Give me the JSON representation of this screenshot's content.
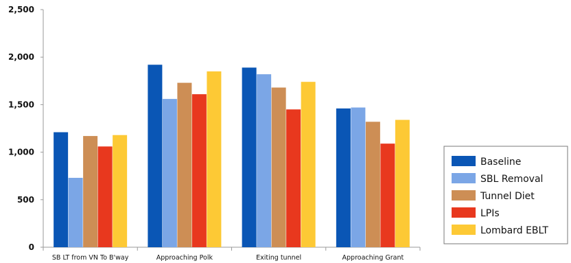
{
  "chart_data": {
    "type": "bar",
    "categories": [
      "SB LT from VN To B'way",
      "Approaching Polk",
      "Exiting tunnel",
      "Approaching Grant"
    ],
    "series": [
      {
        "name": "Baseline",
        "color": "#0a56b5",
        "values": [
          1210,
          1920,
          1890,
          1460
        ]
      },
      {
        "name": "SBL Removal",
        "color": "#7ba6e6",
        "values": [
          730,
          1560,
          1820,
          1470
        ]
      },
      {
        "name": "Tunnel Diet",
        "color": "#cd8e55",
        "values": [
          1170,
          1730,
          1680,
          1320
        ]
      },
      {
        "name": "LPIs",
        "color": "#e8381e",
        "values": [
          1060,
          1610,
          1450,
          1090
        ]
      },
      {
        "name": "Lombard EBLT",
        "color": "#fdc935",
        "values": [
          1180,
          1850,
          1740,
          1340
        ]
      }
    ],
    "ylim": [
      0,
      2500
    ],
    "yticks": [
      0,
      500,
      1000,
      1500,
      2000,
      2500
    ],
    "ytick_labels": [
      "0",
      "500",
      "1,000",
      "1,500",
      "2,000",
      "2,500"
    ],
    "legend_position": "right-bottom",
    "grid": false
  }
}
